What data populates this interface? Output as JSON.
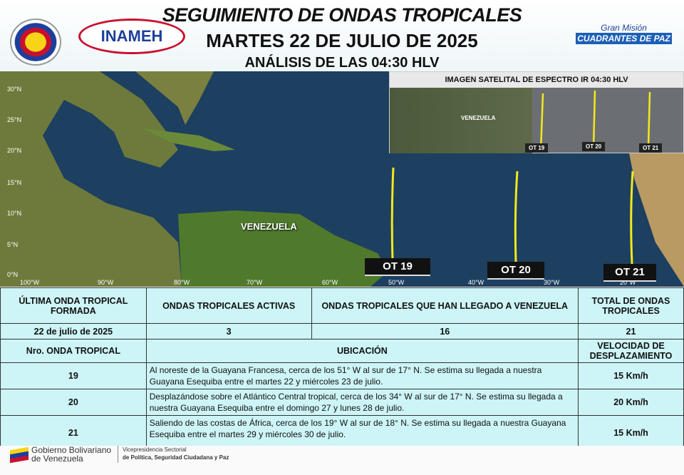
{
  "header": {
    "title": "SEGUIMIENTO DE ONDAS TROPICALES",
    "date": "MARTES 22 DE JULIO DE 2025",
    "analysis": "ANÁLISIS DE LAS 04:30 HLV",
    "logo_inameh": "INAMEH",
    "logo_mision_top": "Gran Misión",
    "logo_mision_bottom": "CUADRANTES DE PAZ"
  },
  "map": {
    "lat_labels": [
      "30°N",
      "25°N",
      "20°N",
      "15°N",
      "10°N",
      "5°N",
      "0°N"
    ],
    "lon_labels": [
      "100°W",
      "90°W",
      "80°W",
      "70°W",
      "60°W",
      "50°W",
      "40°W",
      "30°W",
      "20°W"
    ],
    "country_label": "VENEZUELA",
    "waves": [
      "OT 19",
      "OT 20",
      "OT 21"
    ],
    "wave_color": "#f4e81c",
    "satellite": {
      "title": "IMAGEN SATELITAL DE ESPECTRO IR 04:30  HLV",
      "country_label": "VENEZUELA",
      "waves": [
        "OT 19",
        "OT 20",
        "OT 21"
      ]
    }
  },
  "table": {
    "headers": [
      "ÚLTIMA ONDA TROPICAL FORMADA",
      "ONDAS TROPICALES ACTIVAS",
      "ONDAS TROPICALES QUE HAN LLEGADO A VENEZUELA",
      "TOTAL DE ONDAS TROPICALES"
    ],
    "summary": [
      "22 de julio de 2025",
      "3",
      "16",
      "21"
    ],
    "detail_headers": [
      "Nro. ONDA TROPICAL",
      "UBICACIÓN",
      "VELOCIDAD DE DESPLAZAMIENTO"
    ],
    "rows": [
      {
        "num": "19",
        "location": "Al noreste de la Guayana Francesa, cerca de los 51° W al sur de 17° N. Se estima su llegada a nuestra Guayana Esequiba entre el  martes 22 y  miércoles 23 de julio.",
        "speed": "15 Km/h"
      },
      {
        "num": "20",
        "location": "Desplazándose sobre el Atlántico Central tropical, cerca de los 34° W al sur de 17° N. Se estima su llegada a nuestra Guayana Esequiba entre el  domingo 27  y  lunes 28 de julio.",
        "speed": "20 Km/h"
      },
      {
        "num": "21",
        "location": "Saliendo de las costas de África, cerca de los 19° W al sur de 18° N. Se estima su llegada a nuestra Guayana Esequiba entre el  martes 29  y  miércoles 30 de julio.",
        "speed": "15 Km/h"
      }
    ]
  },
  "footer": {
    "gov_line1": "Gobierno Bolivariano",
    "gov_line2": "de Venezuela",
    "vice_line1": "Vicepresidencia Sectorial",
    "vice_line2": "de Política, Seguridad Ciudadana y Paz"
  }
}
